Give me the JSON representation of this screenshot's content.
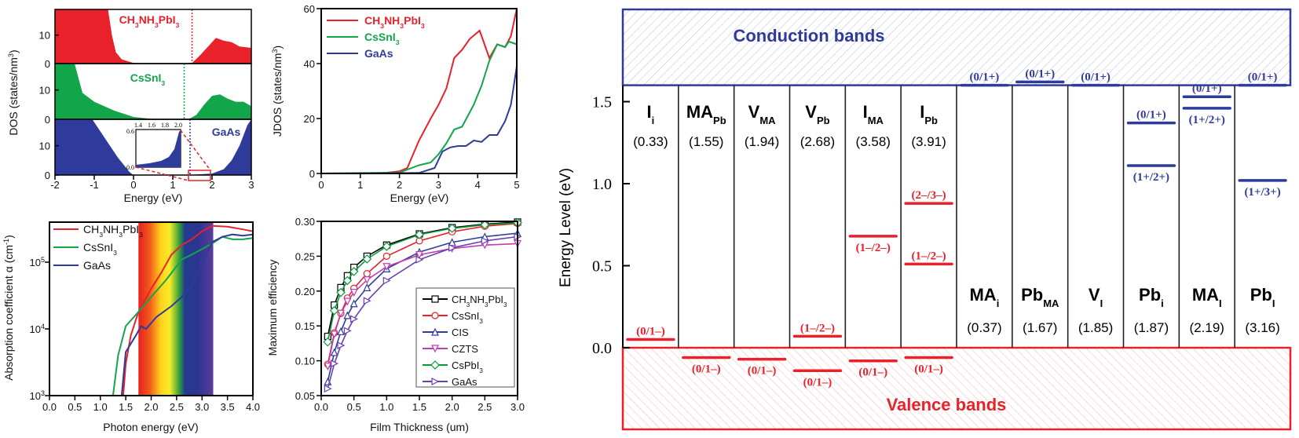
{
  "chart_data": [
    {
      "type": "area",
      "panel": "dos",
      "xlabel": "Energy (eV)",
      "ylabel": "DOS (states/nm3)",
      "xlim": [
        -2,
        3
      ],
      "ylim": [
        0,
        19
      ],
      "xticks": [
        "-2",
        "-1",
        "0",
        "1",
        "2",
        "3"
      ],
      "yticks": [
        "0",
        "10"
      ],
      "series": [
        {
          "name": "CH3NH3PbI3",
          "color": "#e8212a",
          "gap_edge": 1.49,
          "points": [
            [
              -2,
              19
            ],
            [
              -0.65,
              19
            ],
            [
              -0.55,
              10
            ],
            [
              -0.45,
              4
            ],
            [
              -0.3,
              1.5
            ],
            [
              0,
              0.2
            ],
            [
              0.5,
              0
            ],
            [
              1.3,
              0
            ],
            [
              1.5,
              0.3
            ],
            [
              1.7,
              3
            ],
            [
              1.9,
              6
            ],
            [
              2.1,
              9
            ],
            [
              2.3,
              8
            ],
            [
              2.5,
              7.5
            ],
            [
              2.7,
              6
            ],
            [
              3,
              5.5
            ]
          ]
        },
        {
          "name": "CsSnI3",
          "color": "#12a54a",
          "gap_edge": 1.29,
          "points": [
            [
              -2,
              19
            ],
            [
              -1.5,
              19
            ],
            [
              -1.3,
              9
            ],
            [
              -1,
              6
            ],
            [
              -0.5,
              3
            ],
            [
              0,
              0.8
            ],
            [
              0.5,
              0.1
            ],
            [
              1.4,
              0
            ],
            [
              1.6,
              1.5
            ],
            [
              1.8,
              5
            ],
            [
              2,
              8
            ],
            [
              2.2,
              8.5
            ],
            [
              2.4,
              7
            ],
            [
              2.6,
              6
            ],
            [
              2.8,
              6
            ],
            [
              3,
              4.5
            ]
          ]
        },
        {
          "name": "GaAs",
          "color": "#2e3b9b",
          "gap_edge": 1.44,
          "points": [
            [
              -2,
              19
            ],
            [
              -1.05,
              19
            ],
            [
              -0.7,
              12
            ],
            [
              -0.4,
              6
            ],
            [
              -0.1,
              1
            ],
            [
              0,
              0
            ],
            [
              1.4,
              0
            ],
            [
              2,
              0.5
            ],
            [
              2.3,
              2
            ],
            [
              2.5,
              5
            ],
            [
              2.7,
              10
            ],
            [
              2.9,
              17
            ],
            [
              3,
              19
            ]
          ]
        }
      ],
      "inset": {
        "xticks": [
          "1.4",
          "1.6",
          "1.8",
          "2.0"
        ],
        "yticks": [
          "0.0",
          "0.6"
        ]
      }
    },
    {
      "type": "line",
      "panel": "jdos",
      "xlabel": "Energy (eV)",
      "ylabel": "JDOS (states/nm3)",
      "xlim": [
        0,
        5
      ],
      "ylim": [
        0,
        60
      ],
      "xticks": [
        "0",
        "1",
        "2",
        "3",
        "4",
        "5"
      ],
      "yticks": [
        "0",
        "20",
        "40",
        "60"
      ],
      "legend": "top-left",
      "series": [
        {
          "name": "CH3NH3PbI3",
          "color": "#e8212a",
          "points": [
            [
              0,
              0
            ],
            [
              1.5,
              0
            ],
            [
              2,
              0.8
            ],
            [
              2.2,
              2
            ],
            [
              2.5,
              12
            ],
            [
              2.8,
              20
            ],
            [
              3,
              25
            ],
            [
              3.2,
              31
            ],
            [
              3.4,
              42
            ],
            [
              3.6,
              45
            ],
            [
              3.8,
              49
            ],
            [
              4.05,
              52
            ],
            [
              4.15,
              48
            ],
            [
              4.3,
              42
            ],
            [
              4.5,
              47
            ],
            [
              4.7,
              46
            ],
            [
              4.85,
              50
            ],
            [
              5,
              60
            ]
          ]
        },
        {
          "name": "CsSnI3",
          "color": "#12a54a",
          "points": [
            [
              0,
              0
            ],
            [
              2,
              0.3
            ],
            [
              2.5,
              3
            ],
            [
              2.8,
              4
            ],
            [
              3,
              7
            ],
            [
              3.2,
              11
            ],
            [
              3.4,
              16
            ],
            [
              3.6,
              17
            ],
            [
              3.9,
              25
            ],
            [
              4.1,
              32
            ],
            [
              4.3,
              41
            ],
            [
              4.5,
              47
            ],
            [
              4.7,
              46
            ],
            [
              4.8,
              48
            ],
            [
              5,
              47
            ]
          ]
        },
        {
          "name": "GaAs",
          "color": "#2e3b9b",
          "points": [
            [
              0,
              0
            ],
            [
              2.5,
              0.2
            ],
            [
              2.9,
              2
            ],
            [
              3.1,
              8
            ],
            [
              3.3,
              9.5
            ],
            [
              3.5,
              10
            ],
            [
              3.7,
              10
            ],
            [
              3.9,
              12
            ],
            [
              4.1,
              11.5
            ],
            [
              4.3,
              14
            ],
            [
              4.5,
              14
            ],
            [
              4.7,
              19
            ],
            [
              4.85,
              25
            ],
            [
              5,
              39
            ]
          ]
        }
      ]
    },
    {
      "type": "line",
      "panel": "absorption",
      "xlabel": "Photon energy (eV)",
      "ylabel": "Absorption coefficient α (cm-1)",
      "xlim": [
        0,
        4
      ],
      "ylim": [
        1000,
        400000
      ],
      "yscale": "log",
      "xticks": [
        "0.0",
        "0.5",
        "1.0",
        "1.5",
        "2.0",
        "2.5",
        "3.0",
        "3.5",
        "4.0"
      ],
      "yticks": [
        "10^3",
        "10^4",
        "10^5"
      ],
      "visible_spectrum_band": [
        1.75,
        3.22
      ],
      "legend": "top-left",
      "series": [
        {
          "name": "CH3NH3PbI3",
          "color": "#e8212a",
          "points": [
            [
              1.45,
              1000
            ],
            [
              1.5,
              3000
            ],
            [
              1.6,
              8000
            ],
            [
              1.75,
              18000
            ],
            [
              2,
              40000
            ],
            [
              2.2,
              70000
            ],
            [
              2.4,
              130000
            ],
            [
              2.6,
              180000
            ],
            [
              2.8,
              220000
            ],
            [
              3,
              290000
            ],
            [
              3.2,
              350000
            ],
            [
              3.5,
              340000
            ],
            [
              3.8,
              310000
            ],
            [
              4,
              290000
            ]
          ]
        },
        {
          "name": "CsSnI3",
          "color": "#12a54a",
          "points": [
            [
              1.25,
              1000
            ],
            [
              1.35,
              4000
            ],
            [
              1.5,
              11000
            ],
            [
              1.75,
              18000
            ],
            [
              2,
              30000
            ],
            [
              2.3,
              55000
            ],
            [
              2.6,
              110000
            ],
            [
              2.8,
              130000
            ],
            [
              3.2,
              190000
            ],
            [
              3.4,
              240000
            ],
            [
              3.6,
              220000
            ],
            [
              3.8,
              220000
            ],
            [
              4,
              230000
            ]
          ]
        },
        {
          "name": "GaAs",
          "color": "#2e3b9b",
          "points": [
            [
              1.42,
              1000
            ],
            [
              1.5,
              4500
            ],
            [
              1.7,
              8000
            ],
            [
              1.8,
              11000
            ],
            [
              1.9,
              10000
            ],
            [
              2.1,
              15000
            ],
            [
              2.4,
              22000
            ],
            [
              2.6,
              30000
            ],
            [
              2.8,
              45000
            ],
            [
              3,
              100000
            ],
            [
              3.2,
              200000
            ],
            [
              3.4,
              240000
            ],
            [
              3.6,
              260000
            ],
            [
              3.8,
              250000
            ],
            [
              4,
              260000
            ]
          ]
        }
      ]
    },
    {
      "type": "line",
      "panel": "efficiency",
      "xlabel": "Film Thickness (um)",
      "ylabel": "Maximum efficiency",
      "xlim": [
        0,
        3
      ],
      "ylim": [
        0.05,
        0.3
      ],
      "xticks": [
        "0.0",
        "0.5",
        "1.0",
        "1.5",
        "2.0",
        "2.5",
        "3.0"
      ],
      "yticks": [
        "0.05",
        "0.10",
        "0.15",
        "0.20",
        "0.25",
        "0.30"
      ],
      "legend": "bottom-right",
      "x": [
        0.1,
        0.2,
        0.3,
        0.4,
        0.5,
        0.7,
        1.0,
        1.5,
        2.0,
        2.5,
        3.0
      ],
      "series": [
        {
          "name": "CH3NH3PbI3",
          "color": "#000000",
          "marker": "square",
          "values": [
            0.135,
            0.18,
            0.205,
            0.222,
            0.234,
            0.25,
            0.266,
            0.282,
            0.291,
            0.296,
            0.299
          ]
        },
        {
          "name": "CsSnI3",
          "color": "#e8212a",
          "marker": "circle",
          "values": [
            0.095,
            0.14,
            0.168,
            0.19,
            0.204,
            0.225,
            0.25,
            0.272,
            0.285,
            0.293,
            0.297
          ]
        },
        {
          "name": "CIS",
          "color": "#2e3b9b",
          "marker": "triangle-up",
          "values": [
            0.07,
            0.112,
            0.142,
            0.165,
            0.182,
            0.205,
            0.232,
            0.256,
            0.27,
            0.278,
            0.283
          ]
        },
        {
          "name": "CZTS",
          "color": "#c03cb0",
          "marker": "triangle-down",
          "values": [
            0.092,
            0.138,
            0.168,
            0.185,
            0.198,
            0.216,
            0.235,
            0.252,
            0.261,
            0.266,
            0.268
          ]
        },
        {
          "name": "CsPbI3",
          "color": "#0a9a3c",
          "marker": "diamond",
          "values": [
            0.127,
            0.172,
            0.198,
            0.215,
            0.228,
            0.246,
            0.264,
            0.281,
            0.29,
            0.295,
            0.298
          ]
        },
        {
          "name": "GaAs",
          "color": "#6a3fb0",
          "marker": "triangle-right",
          "values": [
            0.06,
            0.096,
            0.122,
            0.143,
            0.16,
            0.186,
            0.215,
            0.245,
            0.262,
            0.272,
            0.278
          ]
        }
      ]
    },
    {
      "type": "diagram",
      "panel": "defect-levels",
      "ylabel": "Energy Level (eV)",
      "ylim": [
        0.0,
        1.6
      ],
      "yticks": [
        "0.0",
        "0.5",
        "1.0",
        "1.5"
      ],
      "conduction_label": "Conduction bands",
      "valence_label": "Valence bands",
      "conduction_color": "#2e3b9b",
      "valence_color": "#e8212a",
      "defects": [
        {
          "base": "I",
          "sub": "i",
          "formation": "(0.33)",
          "row": "top",
          "levels": [
            {
              "label": "(0/1–)",
              "e": 0.05,
              "side": "above",
              "type": "acceptor"
            }
          ]
        },
        {
          "base": "MA",
          "sub": "Pb",
          "formation": "(1.55)",
          "row": "top",
          "levels": [
            {
              "label": "(0/1–)",
              "e": -0.06,
              "side": "below",
              "type": "acceptor"
            }
          ]
        },
        {
          "base": "V",
          "sub": "MA",
          "formation": "(1.94)",
          "row": "top",
          "levels": [
            {
              "label": "(0/1–)",
              "e": -0.07,
              "side": "below",
              "type": "acceptor"
            }
          ]
        },
        {
          "base": "V",
          "sub": "Pb",
          "formation": "(2.68)",
          "row": "top",
          "levels": [
            {
              "label": "(1–/2–)",
              "e": 0.07,
              "side": "above",
              "type": "acceptor"
            },
            {
              "label": "(0/1–)",
              "e": -0.14,
              "side": "below",
              "type": "acceptor"
            }
          ]
        },
        {
          "base": "I",
          "sub": "MA",
          "formation": "(3.58)",
          "row": "top",
          "levels": [
            {
              "label": "(1–/2–)",
              "e": 0.68,
              "side": "below",
              "type": "acceptor"
            },
            {
              "label": "(0/1–)",
              "e": -0.08,
              "side": "below",
              "type": "acceptor"
            }
          ]
        },
        {
          "base": "I",
          "sub": "Pb",
          "formation": "(3.91)",
          "row": "top",
          "levels": [
            {
              "label": "(2–/3–)",
              "e": 0.88,
              "side": "above",
              "type": "acceptor"
            },
            {
              "label": "(1–/2–)",
              "e": 0.51,
              "side": "above",
              "type": "acceptor"
            },
            {
              "label": "(0/1–)",
              "e": -0.06,
              "side": "below",
              "type": "acceptor"
            }
          ]
        },
        {
          "base": "MA",
          "sub": "i",
          "formation": "(0.37)",
          "row": "bottom",
          "levels": [
            {
              "label": "(0/1+)",
              "e": 1.6,
              "side": "above",
              "type": "donor"
            }
          ]
        },
        {
          "base": "Pb",
          "sub": "MA",
          "formation": "(1.67)",
          "row": "bottom",
          "levels": [
            {
              "label": "(0/1+)",
              "e": 1.62,
              "side": "above",
              "type": "donor"
            }
          ]
        },
        {
          "base": "V",
          "sub": "I",
          "formation": "(1.85)",
          "row": "bottom",
          "levels": [
            {
              "label": "(0/1+)",
              "e": 1.6,
              "side": "above",
              "type": "donor"
            }
          ]
        },
        {
          "base": "Pb",
          "sub": "i",
          "formation": "(1.87)",
          "row": "bottom",
          "levels": [
            {
              "label": "(0/1+)",
              "e": 1.37,
              "side": "above",
              "type": "donor"
            },
            {
              "label": "(1+/2+)",
              "e": 1.11,
              "side": "below",
              "type": "donor"
            }
          ]
        },
        {
          "base": "MA",
          "sub": "I",
          "formation": "(2.19)",
          "row": "bottom",
          "levels": [
            {
              "label": "(0/1+)",
              "e": 1.53,
              "side": "above",
              "type": "donor"
            },
            {
              "label": "(1+/2+)",
              "e": 1.46,
              "side": "below",
              "type": "donor"
            }
          ]
        },
        {
          "base": "Pb",
          "sub": "I",
          "formation": "(3.16)",
          "row": "bottom",
          "levels": [
            {
              "label": "(0/1+)",
              "e": 1.6,
              "side": "above",
              "type": "donor"
            },
            {
              "label": "(1+/3+)",
              "e": 1.02,
              "side": "below",
              "type": "donor"
            }
          ]
        }
      ]
    }
  ]
}
